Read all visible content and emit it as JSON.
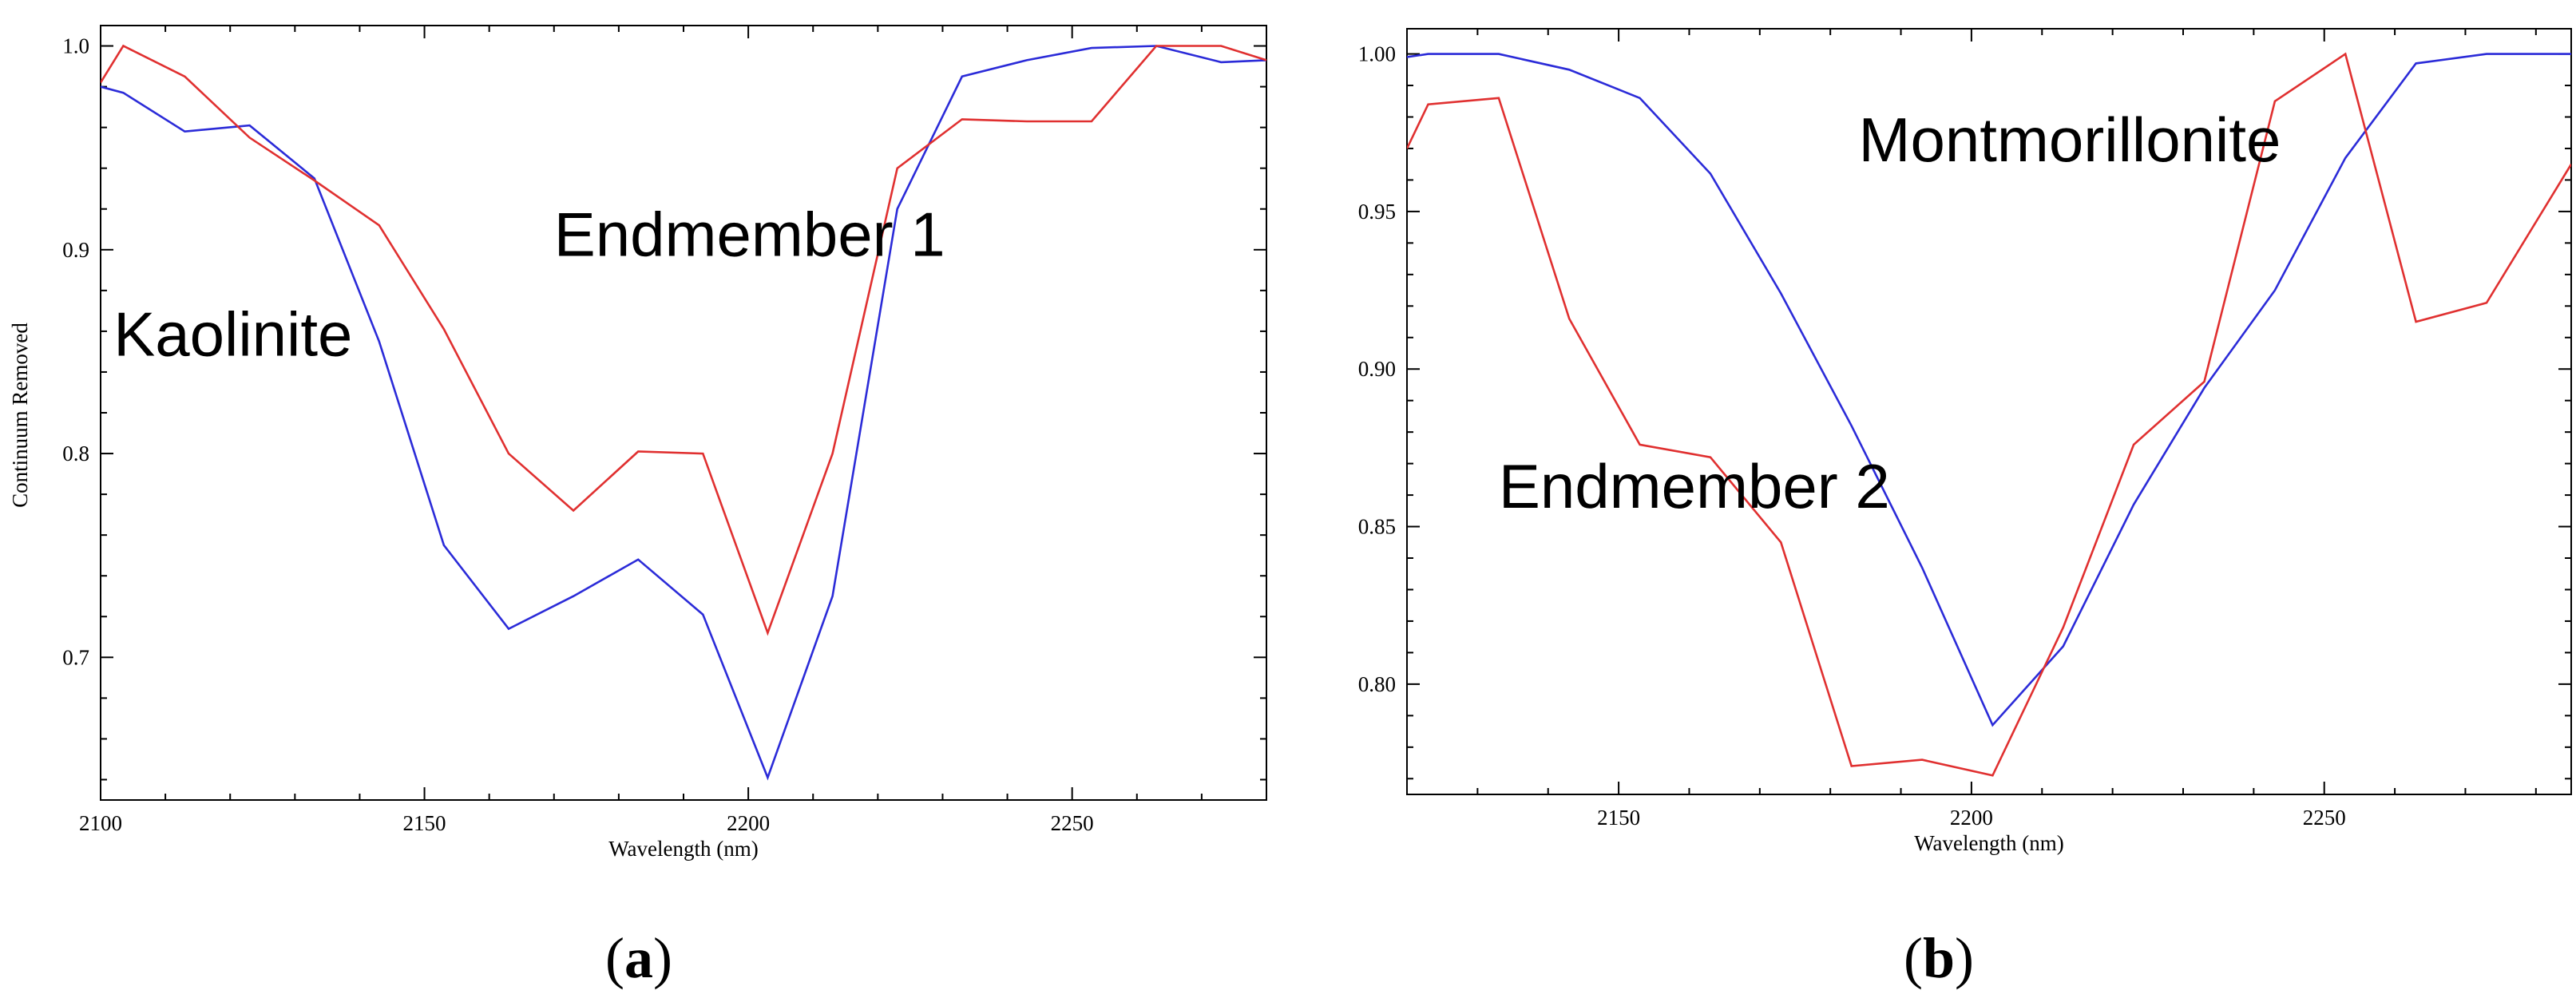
{
  "chart_data": [
    {
      "type": "line",
      "panel_label": "a",
      "xlabel": "Wavelength (nm)",
      "ylabel": "Continuum Removed",
      "xlim": [
        2100,
        2280
      ],
      "ylim": [
        0.63,
        1.01
      ],
      "xticks": [
        2100,
        2150,
        2200,
        2250
      ],
      "xtick_labels": [
        "2100",
        "2150",
        "2200",
        "2250"
      ],
      "yticks": [
        0.7,
        0.8,
        0.9,
        1.0
      ],
      "ytick_labels": [
        "0.7",
        "0.8",
        "0.9",
        "1.0"
      ],
      "series": [
        {
          "name": "Kaolinite",
          "color": "#2b2bd8",
          "x": [
            2100,
            2103.5,
            2113,
            2123,
            2133,
            2143,
            2153,
            2163,
            2173,
            2183,
            2193,
            2203,
            2213,
            2223,
            2233,
            2243,
            2253,
            2263,
            2273,
            2280
          ],
          "y": [
            0.98,
            0.977,
            0.958,
            0.961,
            0.935,
            0.855,
            0.755,
            0.714,
            0.73,
            0.748,
            0.721,
            0.641,
            0.73,
            0.92,
            0.985,
            0.993,
            0.999,
            1.0,
            0.992,
            0.993
          ]
        },
        {
          "name": "Endmember 1",
          "color": "#e03030",
          "x": [
            2100,
            2103.5,
            2113,
            2123,
            2133,
            2143,
            2153,
            2163,
            2173,
            2183,
            2193,
            2203,
            2213,
            2223,
            2233,
            2243,
            2253,
            2263,
            2273,
            2280
          ],
          "y": [
            0.982,
            1.0,
            0.985,
            0.955,
            0.934,
            0.912,
            0.861,
            0.8,
            0.772,
            0.801,
            0.8,
            0.712,
            0.8,
            0.94,
            0.964,
            0.963,
            0.963,
            1.0,
            1.0,
            0.993
          ]
        }
      ],
      "annotations": [
        {
          "text": "Endmember 1",
          "x": 2170,
          "y": 0.897
        },
        {
          "text": "Kaolinite",
          "x": 2102,
          "y": 0.848
        }
      ]
    },
    {
      "type": "line",
      "panel_label": "b",
      "xlabel": "Wavelength (nm)",
      "ylabel": "",
      "xlim": [
        2120,
        2285
      ],
      "ylim": [
        0.765,
        1.008
      ],
      "xticks": [
        2150,
        2200,
        2250
      ],
      "xtick_labels": [
        "2150",
        "2200",
        "2250"
      ],
      "yticks": [
        0.8,
        0.85,
        0.9,
        0.95,
        1.0
      ],
      "ytick_labels": [
        "0.80",
        "0.85",
        "0.90",
        "0.95",
        "1.00"
      ],
      "series": [
        {
          "name": "Montmorillonite",
          "color": "#2b2bd8",
          "x": [
            2120,
            2123,
            2133,
            2143,
            2153,
            2163,
            2173,
            2183,
            2193,
            2203,
            2213,
            2223,
            2233,
            2243,
            2253,
            2263,
            2273,
            2285
          ],
          "y": [
            0.999,
            1.0,
            1.0,
            0.995,
            0.986,
            0.962,
            0.924,
            0.882,
            0.837,
            0.787,
            0.812,
            0.857,
            0.894,
            0.925,
            0.967,
            0.997,
            1.0,
            1.0
          ]
        },
        {
          "name": "Endmember 2",
          "color": "#e03030",
          "x": [
            2120,
            2123,
            2133,
            2143,
            2153,
            2163,
            2173,
            2183,
            2193,
            2203,
            2213,
            2223,
            2233,
            2243,
            2253,
            2263,
            2273,
            2285
          ],
          "y": [
            0.97,
            0.984,
            0.986,
            0.916,
            0.876,
            0.872,
            0.845,
            0.774,
            0.776,
            0.771,
            0.818,
            0.876,
            0.896,
            0.985,
            1.0,
            0.915,
            0.921,
            0.965
          ]
        }
      ],
      "annotations": [
        {
          "text": "Montmorillonite",
          "x": 2184,
          "y": 0.966
        },
        {
          "text": "Endmember 2",
          "x": 2133,
          "y": 0.856
        }
      ]
    }
  ]
}
